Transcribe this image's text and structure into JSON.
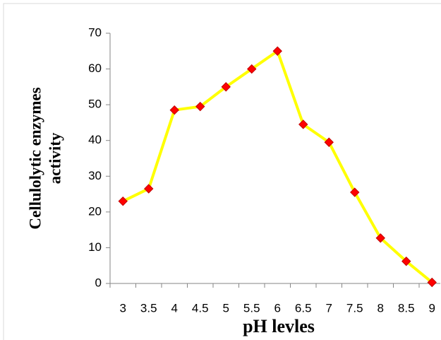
{
  "chart_data": {
    "type": "line",
    "y_label": [
      "Cellulolytic enzymes",
      "activity"
    ],
    "x_label": "pH levles",
    "categories": [
      "3",
      "3.5",
      "4",
      "4.5",
      "5",
      "5.5",
      "6",
      "6.5",
      "7",
      "7.5",
      "8",
      "8.5",
      "9"
    ],
    "series": [
      {
        "name": "activity",
        "color": "#ffff00",
        "marker_color": "#ff0000",
        "values": [
          23,
          26.5,
          48.5,
          49.5,
          55,
          60,
          65,
          44.5,
          39.5,
          25.5,
          12.7,
          6.2,
          0.3
        ]
      }
    ],
    "ylim": [
      0,
      70
    ],
    "yticks": [
      0,
      10,
      20,
      30,
      40,
      50,
      60,
      70
    ],
    "grid": false
  }
}
